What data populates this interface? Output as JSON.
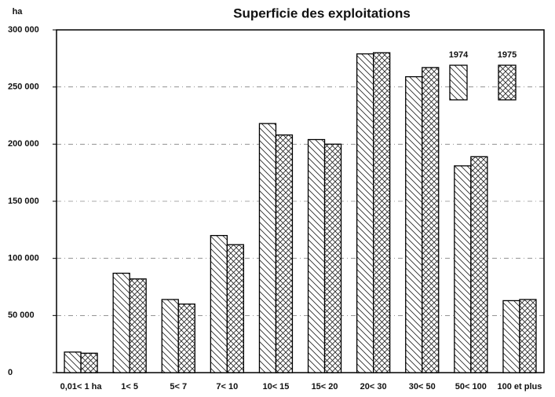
{
  "chart_data": {
    "type": "bar",
    "title": "Superficie des exploitations",
    "y_label": "ha",
    "categories": [
      "0,01< 1 ha",
      "1< 5",
      "5< 7",
      "7< 10",
      "10< 15",
      "15< 20",
      "20< 30",
      "30< 50",
      "50< 100",
      "100 et plus"
    ],
    "series": [
      {
        "name": "1974",
        "color": "#000000",
        "pattern": "diagonal",
        "values": [
          18000,
          87000,
          64000,
          120000,
          218000,
          204000,
          279000,
          259000,
          181000,
          63000
        ]
      },
      {
        "name": "1975",
        "color": "#000000",
        "pattern": "crosshatch",
        "values": [
          17000,
          82000,
          60000,
          112000,
          208000,
          200000,
          280000,
          267000,
          189000,
          64000
        ]
      }
    ],
    "ylim": [
      0,
      300000
    ],
    "yticks": [
      0,
      {
        "value": 50000,
        "label": "50 000"
      },
      {
        "value": 100000,
        "label": "100 000"
      },
      {
        "value": 150000,
        "label": "150 000"
      },
      {
        "value": 200000,
        "label": "200 000"
      },
      {
        "value": 250000,
        "label": "250 000"
      },
      {
        "value": 300000,
        "label": "300 000"
      }
    ],
    "grid": true,
    "legend": "top-right"
  }
}
